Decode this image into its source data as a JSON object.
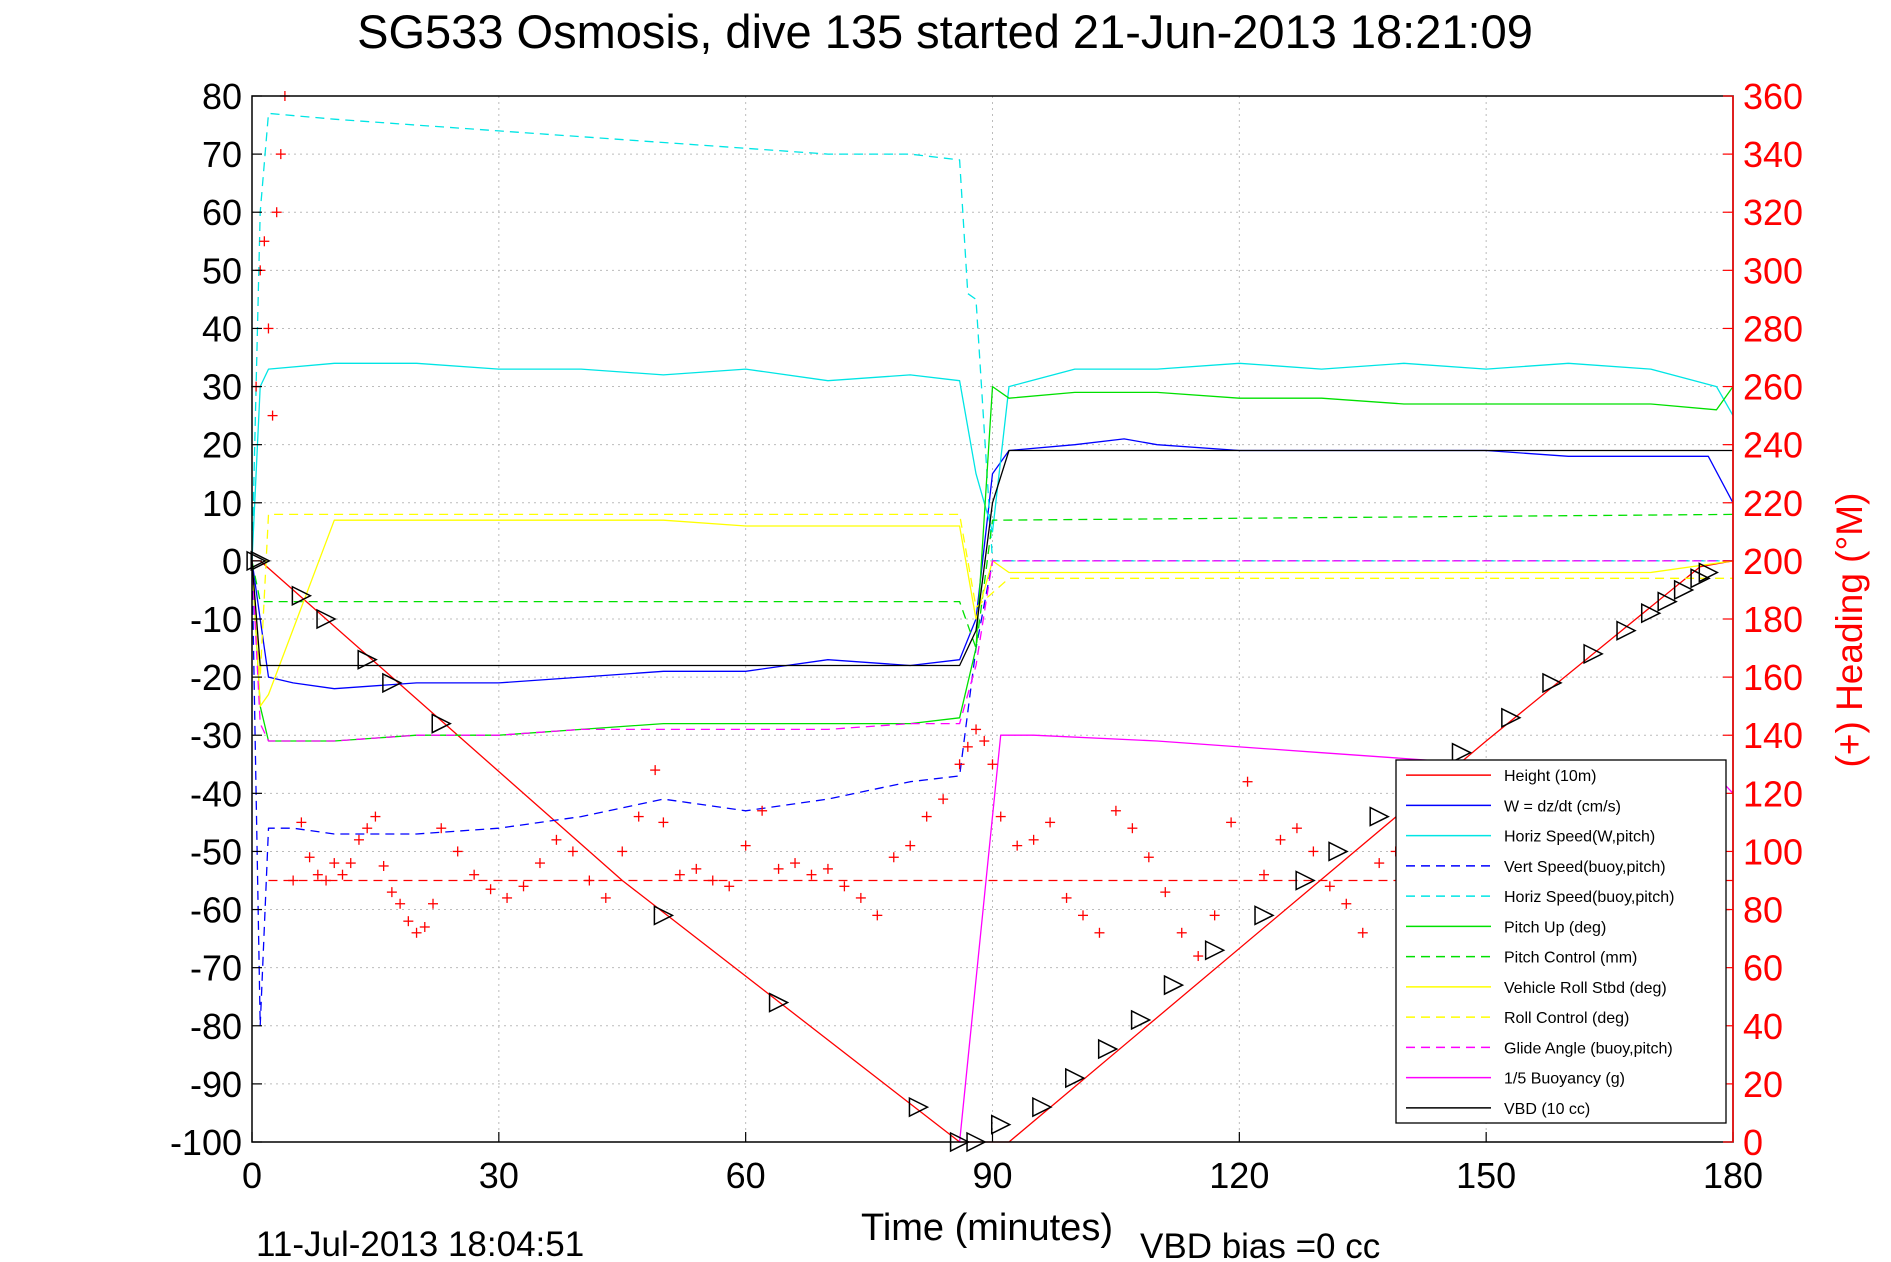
{
  "chart_data": {
    "type": "line",
    "title": "SG533 Osmosis, dive 135 started 21-Jun-2013 18:21:09",
    "xlabel": "Time (minutes)",
    "ylabel_right": "(+) Heading (°M)",
    "footer_left": "11-Jul-2013 18:04:51",
    "footer_right": "VBD bias =0 cc",
    "xlim": [
      0,
      180
    ],
    "ylim": [
      -100,
      80
    ],
    "ylim_right": [
      0,
      360
    ],
    "x_ticks": [
      "0",
      "30",
      "60",
      "90",
      "120",
      "150",
      "180"
    ],
    "y_ticks": [
      "80",
      "70",
      "60",
      "50",
      "40",
      "30",
      "20",
      "10",
      "0",
      "-10",
      "-20",
      "-30",
      "-40",
      "-50",
      "-60",
      "-70",
      "-80",
      "-90",
      "-100"
    ],
    "y_right_ticks": [
      "360",
      "340",
      "320",
      "300",
      "280",
      "260",
      "240",
      "220",
      "200",
      "180",
      "160",
      "140",
      "120",
      "100",
      "80",
      "60",
      "40",
      "20",
      "0"
    ],
    "grid": true,
    "legend_position": "bottom-right",
    "colors": {
      "red": "#ff0000",
      "blue": "#0000ff",
      "cyan": "#00e5e5",
      "green": "#00e000",
      "yellow": "#ffff00",
      "magenta": "#ff00ff",
      "black": "#000000",
      "grid": "#bcbcbc",
      "right_axis": "#ff0000"
    },
    "series": [
      {
        "name": "Height (10m)",
        "color": "#ff0000",
        "dash": false,
        "x": [
          0,
          1,
          45,
          86,
          89,
          92,
          150,
          176,
          180
        ],
        "y": [
          0,
          0,
          -55,
          -100,
          -100,
          -100,
          -31,
          -1,
          0
        ]
      },
      {
        "name": "W = dz/dt (cm/s)",
        "color": "#0000ff",
        "dash": false,
        "x": [
          0,
          1,
          2,
          5,
          10,
          20,
          30,
          40,
          50,
          60,
          70,
          80,
          86,
          88,
          90,
          92,
          100,
          106,
          110,
          120,
          130,
          140,
          150,
          160,
          170,
          177,
          180
        ],
        "y": [
          0,
          -10,
          -20,
          -21,
          -22,
          -21,
          -21,
          -20,
          -19,
          -19,
          -17,
          -18,
          -17,
          -10,
          15,
          19,
          20,
          21,
          20,
          19,
          19,
          19,
          19,
          18,
          18,
          18,
          10
        ]
      },
      {
        "name": "Horiz Speed(W,pitch)",
        "color": "#00e5e5",
        "dash": false,
        "x": [
          0,
          1,
          2,
          10,
          20,
          30,
          40,
          50,
          60,
          70,
          80,
          86,
          88,
          90,
          92,
          100,
          110,
          120,
          130,
          140,
          150,
          160,
          170,
          178,
          180
        ],
        "y": [
          0,
          30,
          33,
          34,
          34,
          33,
          33,
          32,
          33,
          31,
          32,
          31,
          15,
          5,
          30,
          33,
          33,
          34,
          33,
          34,
          33,
          34,
          33,
          30,
          25
        ]
      },
      {
        "name": "Vert Speed(buoy,pitch)",
        "color": "#0000ff",
        "dash": true,
        "x": [
          0,
          1,
          2,
          5,
          10,
          20,
          30,
          40,
          50,
          60,
          70,
          80,
          86,
          88,
          90,
          92,
          100,
          110,
          120,
          130,
          140,
          150,
          160,
          170,
          180
        ],
        "y": [
          0,
          -80,
          -46,
          -46,
          -47,
          -47,
          -46,
          -44,
          -41,
          -43,
          -41,
          -38,
          -37,
          -15,
          0,
          0,
          0,
          0,
          0,
          0,
          0,
          0,
          0,
          0,
          0
        ]
      },
      {
        "name": "Horiz Speed(buoy,pitch)",
        "color": "#00e5e5",
        "dash": true,
        "x": [
          0,
          1,
          2,
          10,
          20,
          30,
          40,
          50,
          60,
          70,
          80,
          86,
          87,
          88,
          90,
          92,
          100,
          110,
          120,
          130,
          140,
          150,
          160,
          170,
          180
        ],
        "y": [
          0,
          60,
          77,
          76,
          75,
          74,
          73,
          72,
          71,
          70,
          70,
          69,
          46,
          45,
          0,
          0,
          0,
          0,
          0,
          0,
          0,
          0,
          0,
          0,
          0
        ]
      },
      {
        "name": "Pitch Up (deg)",
        "color": "#00e000",
        "dash": false,
        "x": [
          0,
          1,
          2,
          10,
          20,
          30,
          40,
          50,
          60,
          70,
          80,
          86,
          88,
          90,
          92,
          100,
          110,
          120,
          130,
          140,
          150,
          160,
          170,
          178,
          180
        ],
        "y": [
          0,
          -25,
          -31,
          -31,
          -30,
          -30,
          -29,
          -28,
          -28,
          -28,
          -28,
          -27,
          -15,
          30,
          28,
          29,
          29,
          28,
          28,
          27,
          27,
          27,
          27,
          26,
          30
        ]
      },
      {
        "name": "Pitch Control (mm)",
        "color": "#00e000",
        "dash": true,
        "x": [
          0,
          1,
          2,
          86,
          88,
          90,
          180
        ],
        "y": [
          0,
          -7,
          -7,
          -7,
          -15,
          7,
          8
        ]
      },
      {
        "name": "Vehicle Roll Stbd (deg)",
        "color": "#ffff00",
        "dash": false,
        "x": [
          0,
          1,
          2,
          10,
          20,
          30,
          40,
          50,
          60,
          70,
          80,
          86,
          88,
          90,
          92,
          100,
          110,
          120,
          130,
          140,
          150,
          160,
          170,
          180
        ],
        "y": [
          0,
          -25,
          -23,
          7,
          7,
          7,
          7,
          7,
          6,
          6,
          6,
          6,
          -10,
          0,
          -2,
          -2,
          -2,
          -2,
          -2,
          -2,
          -2,
          -2,
          -2,
          0
        ]
      },
      {
        "name": "Roll Control (deg)",
        "color": "#ffff00",
        "dash": true,
        "x": [
          0,
          1,
          2,
          86,
          88,
          92,
          180
        ],
        "y": [
          0,
          -20,
          8,
          8,
          -8,
          -3,
          -3
        ]
      },
      {
        "name": "Glide Angle (buoy,pitch)",
        "color": "#ff00ff",
        "dash": true,
        "x": [
          0,
          1,
          2,
          10,
          20,
          30,
          40,
          50,
          60,
          70,
          80,
          86,
          88,
          90,
          92,
          180
        ],
        "y": [
          0,
          -28,
          -31,
          -31,
          -30,
          -30,
          -29,
          -29,
          -29,
          -29,
          -28,
          -28,
          -18,
          0,
          0,
          0
        ]
      },
      {
        "name": "1/5 Buoyancy (g)",
        "color": "#ff00ff",
        "dash": false,
        "x": [
          86,
          91,
          95,
          110,
          130,
          150,
          178,
          180
        ],
        "y": [
          -100,
          -30,
          -30,
          -31,
          -33,
          -35,
          -37,
          -40
        ]
      },
      {
        "name": "VBD (10 cc)",
        "color": "#000000",
        "dash": false,
        "x": [
          0,
          1,
          2,
          86,
          88,
          90,
          92,
          180
        ],
        "y": [
          0,
          -18,
          -18,
          -18,
          -12,
          10,
          19,
          19
        ]
      }
    ],
    "reference_lines": [
      {
        "color": "#ff0000",
        "dash": true,
        "y": -55,
        "xlim": [
          2,
          180
        ]
      }
    ],
    "heading_markers": {
      "color": "#ff0000",
      "marker": "+",
      "x": [
        0.5,
        1,
        1.5,
        2,
        2.5,
        3,
        3.5,
        4,
        5,
        6,
        7,
        8,
        9,
        10,
        11,
        12,
        13,
        14,
        15,
        16,
        17,
        18,
        19,
        20,
        21,
        22,
        23,
        25,
        27,
        29,
        31,
        33,
        35,
        37,
        39,
        41,
        43,
        45,
        47,
        49,
        50,
        52,
        54,
        56,
        58,
        60,
        62,
        64,
        66,
        68,
        70,
        72,
        74,
        76,
        78,
        80,
        82,
        84,
        86,
        87,
        88,
        89,
        90,
        91,
        93,
        95,
        97,
        99,
        101,
        103,
        105,
        107,
        109,
        111,
        113,
        115,
        117,
        119,
        121,
        123,
        125,
        127,
        129,
        131,
        133,
        135,
        137,
        139,
        141,
        143,
        145,
        147,
        149,
        151,
        153,
        155,
        157,
        159,
        161,
        163,
        165,
        167,
        169,
        171,
        173,
        175,
        177,
        179
      ],
      "y": [
        260,
        300,
        310,
        280,
        250,
        320,
        340,
        360,
        90,
        110,
        98,
        92,
        90,
        96,
        92,
        96,
        104,
        108,
        112,
        95,
        86,
        82,
        76,
        72,
        74,
        82,
        108,
        100,
        92,
        87,
        84,
        88,
        96,
        104,
        100,
        90,
        84,
        100,
        112,
        128,
        110,
        92,
        94,
        90,
        88,
        102,
        114,
        94,
        96,
        92,
        94,
        88,
        84,
        78,
        98,
        102,
        112,
        118,
        130,
        136,
        142,
        138,
        130,
        112,
        102,
        104,
        110,
        84,
        78,
        72,
        114,
        108,
        98,
        86,
        72,
        64,
        78,
        110,
        124,
        92,
        104,
        108,
        100,
        88,
        82,
        72,
        96,
        100,
        116,
        120,
        88,
        80,
        70,
        62,
        80,
        96,
        100,
        92,
        82,
        74,
        78,
        86,
        70,
        66,
        64,
        62,
        88,
        80
      ]
    },
    "vertex_markers": {
      "color": "#000000",
      "marker": "triangle-right",
      "x": [
        0.5,
        1,
        6,
        9,
        14,
        17,
        23,
        50,
        64,
        81,
        86,
        88,
        91,
        96,
        100,
        104,
        108,
        112,
        117,
        123,
        128,
        132,
        137,
        141,
        147,
        153,
        158,
        163,
        167,
        170,
        172,
        174,
        176,
        177
      ],
      "y": [
        0,
        0,
        -6,
        -10,
        -17,
        -21,
        -28,
        -61,
        -76,
        -94,
        -100,
        -100,
        -97,
        -94,
        -89,
        -84,
        -79,
        -73,
        -67,
        -61,
        -55,
        -50,
        -44,
        -39,
        -33,
        -27,
        -21,
        -16,
        -12,
        -9,
        -7,
        -5,
        -3,
        -2
      ]
    }
  }
}
